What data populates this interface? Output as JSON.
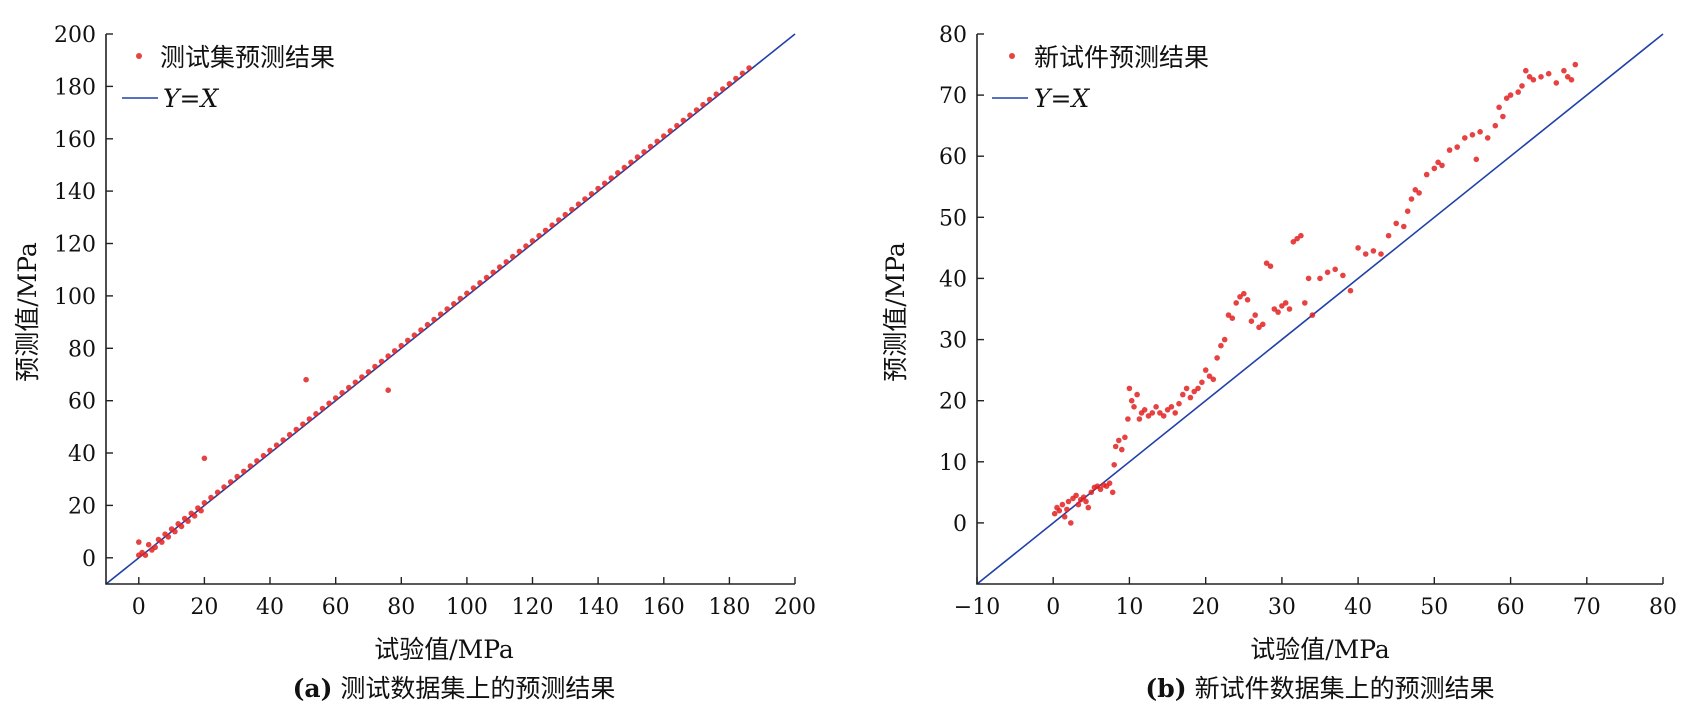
{
  "chart_data": [
    {
      "type": "scatter",
      "id": "a",
      "caption_tag": "(a)",
      "caption_text": "测试数据集上的预测结果",
      "xlabel": "试验值/MPa",
      "ylabel": "预测值/MPa",
      "xlim": [
        -10,
        200
      ],
      "ylim": [
        -10,
        200
      ],
      "xticks": [
        0,
        20,
        40,
        60,
        80,
        100,
        120,
        140,
        160,
        180,
        200
      ],
      "yticks": [
        0,
        20,
        40,
        60,
        80,
        100,
        120,
        140,
        160,
        180,
        200
      ],
      "legend_position": "top-left",
      "series": [
        {
          "name": "测试集预测结果",
          "kind": "scatter",
          "color": "#e32121",
          "points": [
            [
              0,
              1
            ],
            [
              0,
              6
            ],
            [
              1,
              2
            ],
            [
              2,
              1
            ],
            [
              3,
              5
            ],
            [
              4,
              3
            ],
            [
              5,
              4
            ],
            [
              6,
              7
            ],
            [
              7,
              6
            ],
            [
              8,
              9
            ],
            [
              9,
              8
            ],
            [
              10,
              11
            ],
            [
              11,
              10
            ],
            [
              12,
              13
            ],
            [
              13,
              12
            ],
            [
              14,
              15
            ],
            [
              15,
              14
            ],
            [
              16,
              17
            ],
            [
              17,
              16
            ],
            [
              18,
              19
            ],
            [
              19,
              18
            ],
            [
              20,
              38
            ],
            [
              20,
              21
            ],
            [
              22,
              23
            ],
            [
              24,
              25
            ],
            [
              26,
              27
            ],
            [
              28,
              29
            ],
            [
              30,
              31
            ],
            [
              32,
              33
            ],
            [
              34,
              35
            ],
            [
              36,
              37
            ],
            [
              38,
              39
            ],
            [
              40,
              41
            ],
            [
              42,
              43
            ],
            [
              44,
              45
            ],
            [
              46,
              47
            ],
            [
              48,
              49
            ],
            [
              50,
              51
            ],
            [
              51,
              68
            ],
            [
              52,
              53
            ],
            [
              54,
              55
            ],
            [
              56,
              57
            ],
            [
              58,
              59
            ],
            [
              60,
              61
            ],
            [
              62,
              63
            ],
            [
              64,
              65
            ],
            [
              66,
              67
            ],
            [
              68,
              69
            ],
            [
              70,
              71
            ],
            [
              72,
              73
            ],
            [
              74,
              75
            ],
            [
              76,
              64
            ],
            [
              76,
              77
            ],
            [
              78,
              79
            ],
            [
              80,
              81
            ],
            [
              82,
              83
            ],
            [
              84,
              85
            ],
            [
              86,
              87
            ],
            [
              88,
              89
            ],
            [
              90,
              91
            ],
            [
              92,
              93
            ],
            [
              94,
              95
            ],
            [
              96,
              97
            ],
            [
              98,
              99
            ],
            [
              100,
              101
            ],
            [
              102,
              103
            ],
            [
              104,
              105
            ],
            [
              106,
              107
            ],
            [
              108,
              109
            ],
            [
              110,
              111
            ],
            [
              112,
              113
            ],
            [
              114,
              115
            ],
            [
              116,
              117
            ],
            [
              118,
              119
            ],
            [
              120,
              121
            ],
            [
              122,
              123
            ],
            [
              124,
              125
            ],
            [
              126,
              127
            ],
            [
              128,
              129
            ],
            [
              130,
              131
            ],
            [
              132,
              133
            ],
            [
              134,
              135
            ],
            [
              136,
              137
            ],
            [
              138,
              139
            ],
            [
              140,
              141
            ],
            [
              142,
              143
            ],
            [
              144,
              145
            ],
            [
              146,
              147
            ],
            [
              148,
              149
            ],
            [
              150,
              151
            ],
            [
              152,
              153
            ],
            [
              154,
              155
            ],
            [
              156,
              157
            ],
            [
              158,
              159
            ],
            [
              160,
              161
            ],
            [
              162,
              163
            ],
            [
              164,
              165
            ],
            [
              166,
              167
            ],
            [
              168,
              169
            ],
            [
              170,
              171
            ],
            [
              172,
              173
            ],
            [
              174,
              175
            ],
            [
              176,
              177
            ],
            [
              178,
              179
            ],
            [
              180,
              181
            ],
            [
              182,
              183
            ],
            [
              184,
              185
            ],
            [
              186,
              187
            ]
          ]
        },
        {
          "name": "Y=X",
          "name_parts": [
            "Y",
            "=",
            "X"
          ],
          "kind": "line",
          "color": "#2040a8",
          "points": [
            [
              -10,
              -10
            ],
            [
              200,
              200
            ]
          ]
        }
      ]
    },
    {
      "type": "scatter",
      "id": "b",
      "caption_tag": "(b)",
      "caption_text": "新试件数据集上的预测结果",
      "xlabel": "试验值/MPa",
      "ylabel": "预测值/MPa",
      "xlim": [
        -10,
        80
      ],
      "ylim": [
        -10,
        80
      ],
      "xticks": [
        -10,
        0,
        10,
        20,
        30,
        40,
        50,
        60,
        70,
        80
      ],
      "xtick_labels": [
        "−10",
        "0",
        "10",
        "20",
        "30",
        "40",
        "50",
        "60",
        "70",
        "80"
      ],
      "yticks": [
        0,
        10,
        20,
        30,
        40,
        50,
        60,
        70,
        80
      ],
      "legend_position": "top-left",
      "series": [
        {
          "name": "新试件预测结果",
          "kind": "scatter",
          "color": "#e32121",
          "points": [
            [
              0.2,
              1.5
            ],
            [
              0.5,
              2.5
            ],
            [
              0.8,
              2.0
            ],
            [
              1.2,
              3.0
            ],
            [
              1.5,
              1.0
            ],
            [
              1.8,
              2.2
            ],
            [
              2.0,
              3.5
            ],
            [
              2.3,
              0.0
            ],
            [
              2.6,
              4.0
            ],
            [
              3.0,
              4.5
            ],
            [
              3.3,
              3.0
            ],
            [
              3.6,
              3.8
            ],
            [
              4.0,
              4.2
            ],
            [
              4.3,
              3.5
            ],
            [
              4.6,
              2.5
            ],
            [
              5.0,
              5.0
            ],
            [
              5.4,
              5.8
            ],
            [
              5.8,
              6.0
            ],
            [
              6.2,
              5.5
            ],
            [
              6.6,
              6.2
            ],
            [
              7.0,
              6.0
            ],
            [
              7.4,
              6.5
            ],
            [
              7.8,
              5.0
            ],
            [
              8.0,
              9.5
            ],
            [
              8.2,
              12.5
            ],
            [
              8.6,
              13.5
            ],
            [
              9.0,
              12.0
            ],
            [
              9.4,
              14.0
            ],
            [
              9.8,
              17.0
            ],
            [
              10.0,
              22.0
            ],
            [
              10.3,
              20.0
            ],
            [
              10.6,
              19.0
            ],
            [
              11.0,
              21.0
            ],
            [
              11.3,
              17.0
            ],
            [
              11.6,
              18.0
            ],
            [
              12.0,
              18.5
            ],
            [
              12.5,
              17.5
            ],
            [
              13.0,
              18.0
            ],
            [
              13.5,
              19.0
            ],
            [
              14.0,
              18.0
            ],
            [
              14.5,
              17.5
            ],
            [
              15.0,
              18.5
            ],
            [
              15.5,
              19.0
            ],
            [
              16.0,
              18.0
            ],
            [
              16.5,
              19.5
            ],
            [
              17.0,
              21.0
            ],
            [
              17.5,
              22.0
            ],
            [
              18.0,
              20.5
            ],
            [
              18.5,
              21.5
            ],
            [
              19.0,
              22.0
            ],
            [
              19.5,
              23.0
            ],
            [
              20.0,
              25.0
            ],
            [
              20.5,
              24.0
            ],
            [
              21.0,
              23.5
            ],
            [
              21.5,
              27.0
            ],
            [
              22.0,
              29.0
            ],
            [
              22.5,
              30.0
            ],
            [
              23.0,
              34.0
            ],
            [
              23.5,
              33.5
            ],
            [
              24.0,
              36.0
            ],
            [
              24.5,
              37.0
            ],
            [
              25.0,
              37.5
            ],
            [
              25.5,
              36.5
            ],
            [
              26.0,
              33.0
            ],
            [
              26.5,
              34.0
            ],
            [
              27.0,
              32.0
            ],
            [
              27.5,
              32.5
            ],
            [
              28.0,
              42.5
            ],
            [
              28.5,
              42.0
            ],
            [
              29.0,
              35.0
            ],
            [
              29.5,
              34.5
            ],
            [
              30.0,
              35.5
            ],
            [
              30.5,
              36.0
            ],
            [
              31.0,
              35.0
            ],
            [
              31.5,
              46.0
            ],
            [
              32.0,
              46.5
            ],
            [
              32.5,
              47.0
            ],
            [
              33.0,
              36.0
            ],
            [
              33.5,
              40.0
            ],
            [
              34.0,
              34.0
            ],
            [
              35.0,
              40.0
            ],
            [
              36.0,
              41.0
            ],
            [
              37.0,
              41.5
            ],
            [
              38.0,
              40.5
            ],
            [
              39.0,
              38.0
            ],
            [
              40.0,
              45.0
            ],
            [
              41.0,
              44.0
            ],
            [
              42.0,
              44.5
            ],
            [
              43.0,
              44.0
            ],
            [
              44.0,
              47.0
            ],
            [
              45.0,
              49.0
            ],
            [
              46.0,
              48.5
            ],
            [
              46.5,
              51.0
            ],
            [
              47.0,
              53.0
            ],
            [
              47.5,
              54.5
            ],
            [
              48.0,
              54.0
            ],
            [
              49.0,
              57.0
            ],
            [
              50.0,
              58.0
            ],
            [
              50.5,
              59.0
            ],
            [
              51.0,
              58.5
            ],
            [
              52.0,
              61.0
            ],
            [
              53.0,
              61.5
            ],
            [
              54.0,
              63.0
            ],
            [
              55.0,
              63.5
            ],
            [
              55.5,
              59.5
            ],
            [
              56.0,
              64.0
            ],
            [
              57.0,
              63.0
            ],
            [
              58.0,
              65.0
            ],
            [
              58.5,
              68.0
            ],
            [
              59.0,
              66.5
            ],
            [
              59.5,
              69.5
            ],
            [
              60.0,
              70.0
            ],
            [
              61.0,
              70.5
            ],
            [
              61.5,
              71.5
            ],
            [
              62.0,
              74.0
            ],
            [
              62.5,
              73.0
            ],
            [
              63.0,
              72.5
            ],
            [
              64.0,
              73.0
            ],
            [
              65.0,
              73.5
            ],
            [
              66.0,
              72.0
            ],
            [
              67.0,
              74.0
            ],
            [
              67.5,
              73.0
            ],
            [
              68.0,
              72.5
            ],
            [
              68.5,
              75.0
            ]
          ]
        },
        {
          "name": "Y=X",
          "name_parts": [
            "Y",
            "=",
            "X"
          ],
          "kind": "line",
          "color": "#2040a8",
          "points": [
            [
              -10,
              -10
            ],
            [
              80,
              80
            ]
          ]
        }
      ]
    }
  ]
}
